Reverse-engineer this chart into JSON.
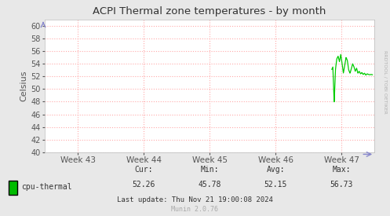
{
  "title": "ACPI Thermal zone temperatures - by month",
  "ylabel": "Celsius",
  "bg_color": "#e8e8e8",
  "plot_bg_color": "#ffffff",
  "grid_color": "#ffaaaa",
  "line_color": "#00cc00",
  "ylim": [
    40,
    61
  ],
  "yticks": [
    40,
    42,
    44,
    46,
    48,
    50,
    52,
    54,
    56,
    58,
    60
  ],
  "x_labels": [
    "Week 43",
    "Week 44",
    "Week 45",
    "Week 46",
    "Week 47"
  ],
  "legend_label": "cpu-thermal",
  "legend_color": "#00bb00",
  "cur_label": "Cur:",
  "cur_val": "52.26",
  "min_label": "Min:",
  "min_val": "45.78",
  "avg_label": "Avg:",
  "avg_val": "52.15",
  "max_label": "Max:",
  "max_val": "56.73",
  "last_update": "Last update: Thu Nov 21 19:00:08 2024",
  "munin_text": "Munin 2.0.76",
  "rrdtool_text": "RRDTOOL / TOBI OETIKER",
  "title_color": "#333333",
  "axis_color": "#555555",
  "text_color": "#333333",
  "arrow_color": "#8888cc"
}
